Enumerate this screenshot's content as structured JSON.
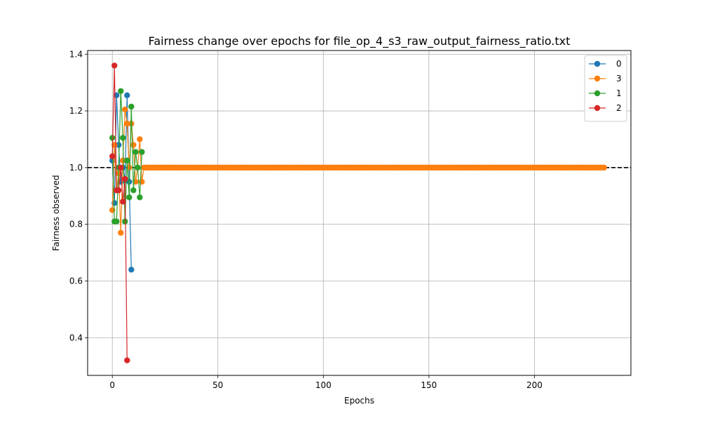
{
  "chart_data": {
    "type": "line",
    "title": "Fairness change over epochs for file_op_4_s3_raw_output_fairness_ratio.txt",
    "xlabel": "Epochs",
    "ylabel": "Fairness observed",
    "xlim": [
      -11.7,
      245.7
    ],
    "ylim": [
      0.267,
      1.413
    ],
    "xticks": [
      0,
      50,
      100,
      150,
      200
    ],
    "yticks": [
      0.4,
      0.6,
      0.8,
      1.0,
      1.2,
      1.4
    ],
    "xtick_labels": [
      "0",
      "50",
      "100",
      "150",
      "200"
    ],
    "ytick_labels": [
      "0.4",
      "0.6",
      "0.8",
      "1.0",
      "1.2",
      "1.4"
    ],
    "grid": true,
    "legend_position": "top-right",
    "reference_line": {
      "y": 1.0,
      "style": "dashed",
      "color": "#000000"
    },
    "series": [
      {
        "name": "0",
        "color": "#1f77b4",
        "x": [
          0,
          1,
          2,
          3,
          4,
          5,
          6,
          7,
          8,
          9
        ],
        "y": [
          1.025,
          0.875,
          1.255,
          1.08,
          0.95,
          1.0,
          0.955,
          1.255,
          0.95,
          0.64
        ]
      },
      {
        "name": "3",
        "color": "#ff7f0e",
        "x": [
          0,
          1,
          2,
          3,
          4,
          5,
          6,
          7,
          8,
          9,
          10,
          11,
          12,
          13,
          14
        ],
        "y": [
          0.85,
          1.08,
          0.92,
          0.98,
          0.77,
          1.025,
          1.205,
          1.155,
          1.0,
          1.155,
          1.08,
          0.95,
          1.0,
          1.1,
          0.95
        ],
        "constant_from": 15,
        "constant_to": 233,
        "constant_value": 1.0
      },
      {
        "name": "1",
        "color": "#2ca02c",
        "x": [
          0,
          1,
          2,
          3,
          4,
          5,
          6,
          7,
          8,
          9,
          10,
          11,
          12,
          13,
          14
        ],
        "y": [
          1.105,
          0.81,
          0.81,
          1.0,
          1.27,
          1.105,
          0.81,
          1.025,
          0.895,
          1.215,
          0.92,
          1.055,
          1.0,
          0.895,
          1.055
        ]
      },
      {
        "name": "2",
        "color": "#d62728",
        "x": [
          0,
          1,
          2,
          3,
          4,
          5,
          6,
          7
        ],
        "y": [
          1.04,
          1.36,
          0.92,
          0.92,
          1.0,
          0.88,
          0.96,
          0.32
        ]
      }
    ]
  }
}
